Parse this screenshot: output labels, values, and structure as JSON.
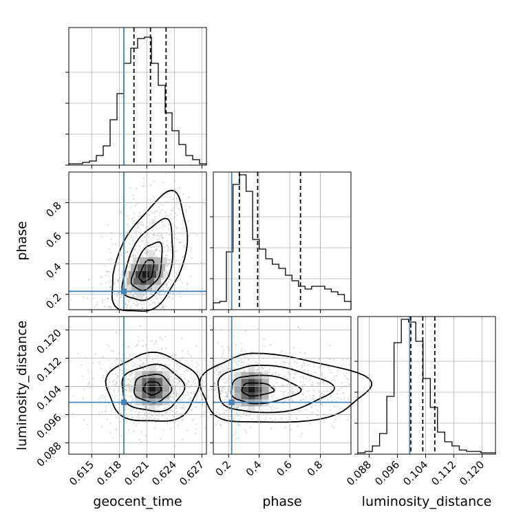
{
  "chart_data": {
    "type": "corner",
    "parameters": [
      "geocent_time",
      "phase",
      "luminosity_distance"
    ],
    "axis_labels": {
      "geocent_time": "geocent_time",
      "phase": "phase",
      "luminosity_distance": "luminosity_distance"
    },
    "ranges": {
      "geocent_time": [
        0.6125,
        0.6275
      ],
      "phase": [
        0.1,
        1.0
      ],
      "luminosity_distance": [
        0.0848,
        0.1238
      ]
    },
    "ticks": {
      "geocent_time": [
        "0.615",
        "0.618",
        "0.621",
        "0.624",
        "0.627"
      ],
      "phase": [
        "0.2",
        "0.4",
        "0.6",
        "0.8"
      ],
      "luminosity_distance": [
        "0.088",
        "0.096",
        "0.104",
        "0.112",
        "0.120"
      ]
    },
    "truths": {
      "geocent_time": 0.6185,
      "phase": 0.22,
      "luminosity_distance": 0.0995
    },
    "quantiles": {
      "geocent_time": [
        0.6196,
        0.6214,
        0.6231
      ],
      "phase": [
        0.27,
        0.39,
        0.67
      ],
      "luminosity_distance": [
        0.0998,
        0.1032,
        0.1066
      ]
    },
    "histograms": {
      "geocent_time": [
        0.01,
        0.01,
        0.02,
        0.03,
        0.07,
        0.14,
        0.33,
        0.52,
        0.74,
        0.85,
        0.92,
        0.93,
        0.74,
        0.58,
        0.38,
        0.25,
        0.15,
        0.07,
        0.04,
        0.01
      ],
      "phase": [
        0.05,
        0.06,
        0.42,
        0.91,
        0.98,
        0.86,
        0.51,
        0.44,
        0.37,
        0.33,
        0.3,
        0.25,
        0.21,
        0.17,
        0.15,
        0.17,
        0.17,
        0.15,
        0.13,
        0.11,
        0.06
      ],
      "luminosity_distance": [
        0.01,
        0.02,
        0.06,
        0.15,
        0.42,
        0.81,
        0.98,
        0.96,
        0.82,
        0.55,
        0.34,
        0.16,
        0.09,
        0.06,
        0.03,
        0.02,
        0.02,
        0.01,
        0.01
      ]
    },
    "density_2d": {
      "phase_vs_geocent_time": {
        "center": [
          0.6209,
          0.33
        ],
        "spread": [
          0.0013,
          0.09
        ]
      },
      "luminosity_distance_vs_geocent_time": {
        "center": [
          0.6216,
          0.1035
        ],
        "spread": [
          0.0018,
          0.0035
        ]
      },
      "luminosity_distance_vs_phase": {
        "center": [
          0.35,
          0.1032
        ],
        "spread": [
          0.12,
          0.0035
        ]
      }
    },
    "truth_color": "#4682b4",
    "hist_color": "#000000",
    "grid": true
  }
}
